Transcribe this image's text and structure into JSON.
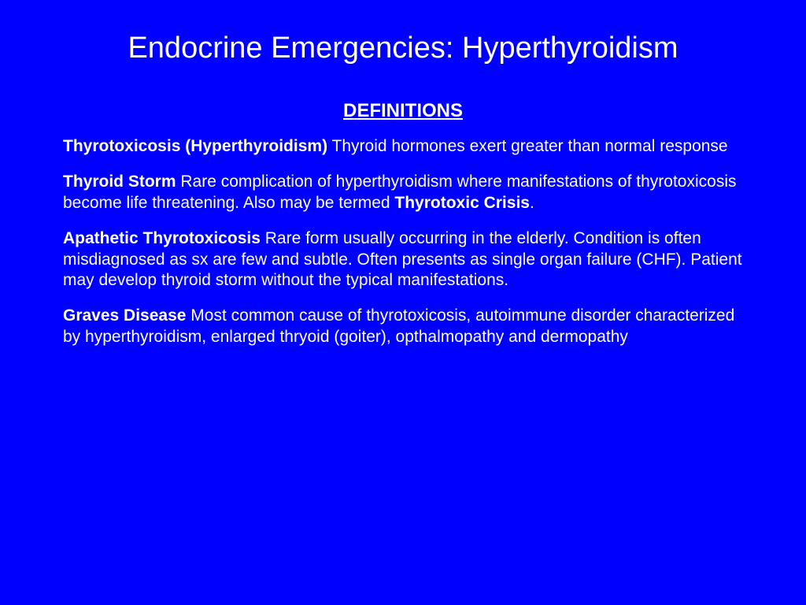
{
  "background_color": "#0000ff",
  "text_color": "#ffffff",
  "title": "Endocrine Emergencies: Hyperthyroidism",
  "section_heading": "DEFINITIONS",
  "definitions": [
    {
      "term": "Thyrotoxicosis (Hyperthyroidism)",
      "text_before": "  Thyroid hormones exert greater than normal response",
      "inline_bold": "",
      "text_after": ""
    },
    {
      "term": "Thyroid Storm",
      "text_before": "  Rare complication of hyperthyroidism where manifestations of thyrotoxicosis become life threatening. Also may be termed ",
      "inline_bold": "Thyrotoxic Crisis",
      "text_after": "."
    },
    {
      "term": "Apathetic Thyrotoxicosis",
      "text_before": "  Rare form usually occurring in the elderly. Condition is often misdiagnosed as sx are few and subtle. Often presents as single organ failure (CHF). Patient may develop thyroid storm without the typical manifestations.",
      "inline_bold": "",
      "text_after": ""
    },
    {
      "term": "Graves Disease",
      "text_before": "  Most common cause of thyrotoxicosis, autoimmune disorder characterized by hyperthyroidism, enlarged thryoid (goiter), opthalmopathy and dermopathy",
      "inline_bold": "",
      "text_after": ""
    }
  ],
  "title_fontsize": 38,
  "heading_fontsize": 24,
  "body_fontsize": 21
}
